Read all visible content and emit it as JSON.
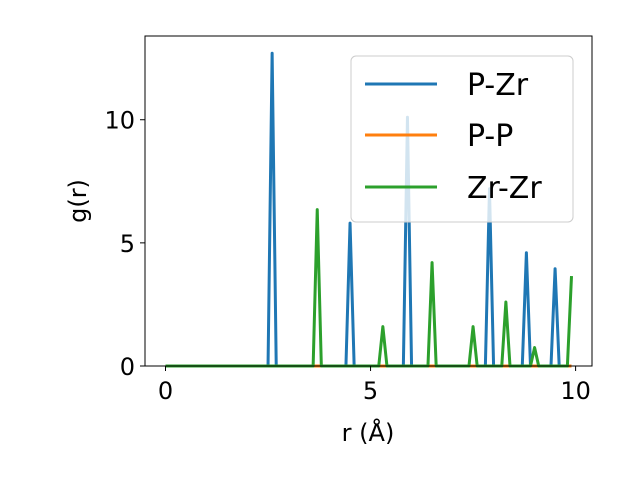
{
  "chart_data": {
    "type": "line",
    "xlabel": "r (Å)",
    "ylabel": "g(r)",
    "xlim": [
      -0.5,
      10.4
    ],
    "ylim": [
      0,
      13.4
    ],
    "x_ticks": [
      0,
      5,
      10
    ],
    "y_ticks": [
      0,
      5,
      10
    ],
    "x_tick_labels": [
      "0",
      "5",
      "10"
    ],
    "y_tick_labels": [
      "0",
      "5",
      "10"
    ],
    "grid": false,
    "legend_position": "top-right",
    "series": [
      {
        "name": "P-Zr",
        "color": "#1f77b4",
        "x": [
          0.0,
          2.5,
          2.6,
          2.7,
          4.4,
          4.5,
          4.6,
          5.8,
          5.9,
          6.0,
          7.8,
          7.9,
          8.0,
          8.7,
          8.8,
          8.9,
          9.4,
          9.5,
          9.6,
          9.9
        ],
        "y": [
          0,
          0,
          12.7,
          0,
          0,
          5.8,
          0,
          0,
          10.1,
          0,
          0,
          7.2,
          0,
          0,
          4.6,
          0,
          0,
          3.95,
          0,
          0
        ]
      },
      {
        "name": "P-P",
        "color": "#ff7f0e",
        "x": [
          0.0,
          9.9
        ],
        "y": [
          0,
          0
        ]
      },
      {
        "name": "Zr-Zr",
        "color": "#2ca02c",
        "x": [
          0.0,
          3.6,
          3.7,
          3.8,
          5.2,
          5.3,
          5.4,
          6.4,
          6.5,
          6.6,
          7.4,
          7.5,
          7.6,
          8.2,
          8.3,
          8.4,
          8.9,
          9.0,
          9.1,
          9.8,
          9.9
        ],
        "y": [
          0,
          0,
          6.35,
          0,
          0,
          1.6,
          0,
          0,
          4.2,
          0,
          0,
          1.6,
          0,
          0,
          2.6,
          0,
          0,
          0.75,
          0,
          0,
          3.65
        ]
      }
    ]
  }
}
